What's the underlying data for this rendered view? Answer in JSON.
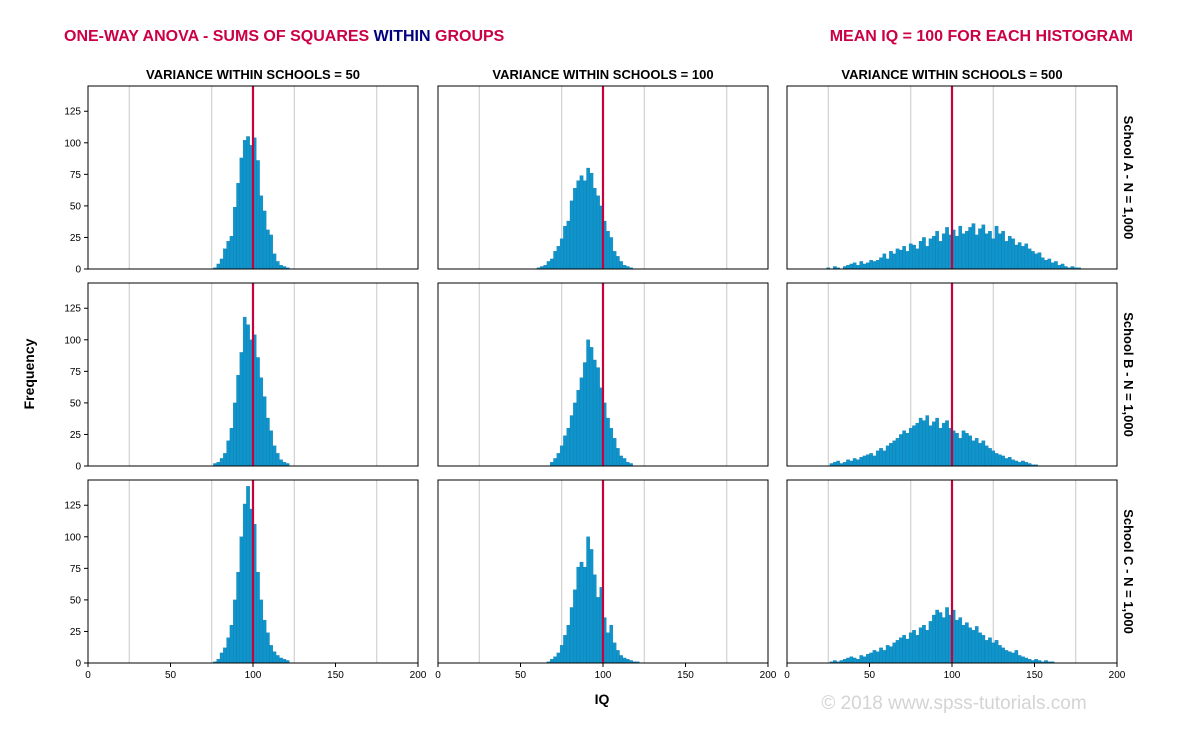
{
  "header": {
    "title_parts": [
      {
        "text": "ONE-WAY ANOVA - SUMS OF SQUARES ",
        "color": "#cc0044"
      },
      {
        "text": "WITHIN",
        "color": "#000080"
      },
      {
        "text": " GROUPS",
        "color": "#cc0044"
      }
    ],
    "right_title": "MEAN IQ = 100 FOR EACH HISTOGRAM"
  },
  "watermark": "© 2018 www.spss-tutorials.com",
  "colors": {
    "bar": "#0f94cc",
    "bar_edge": "#0b77a6",
    "mean_line": "#c8003c",
    "grid": "#c8c8c8",
    "frame": "#000000",
    "title_red": "#cc0044",
    "title_navy": "#000080",
    "watermark": "#d4d4d4"
  },
  "chart_data": {
    "type": "histogram-grid",
    "columns": [
      "VARIANCE WITHIN SCHOOLS = 50",
      "VARIANCE WITHIN SCHOOLS = 100",
      "VARIANCE WITHIN SCHOOLS = 500"
    ],
    "rows": [
      "School A - N = 1,000",
      "School B - N = 1,000",
      "School C - N = 1,000"
    ],
    "xlabel": "IQ",
    "ylabel": "Frequency",
    "xlim": [
      0,
      200
    ],
    "ylim": [
      0,
      145
    ],
    "xticks": [
      0,
      50,
      100,
      150,
      200
    ],
    "yticks": [
      0,
      25,
      50,
      75,
      100,
      125
    ],
    "vgrid": [
      25,
      75,
      125,
      175
    ],
    "mean": 100,
    "bin_width": 2,
    "panels": [
      [
        {
          "bin_start": 76,
          "counts": [
            1,
            4,
            8,
            16,
            22,
            26,
            49,
            68,
            88,
            102,
            105,
            98,
            104,
            86,
            58,
            46,
            31,
            27,
            12,
            6,
            3,
            2,
            1
          ]
        },
        {
          "bin_start": 60,
          "counts": [
            1,
            2,
            3,
            6,
            8,
            14,
            18,
            24,
            34,
            38,
            54,
            64,
            70,
            74,
            70,
            80,
            76,
            64,
            58,
            50,
            38,
            30,
            25,
            14,
            10,
            6,
            3,
            2,
            1
          ]
        },
        {
          "bin_start": 24,
          "counts": [
            1,
            0,
            2,
            1,
            0,
            2,
            3,
            4,
            5,
            3,
            6,
            4,
            5,
            7,
            6,
            7,
            9,
            12,
            8,
            14,
            12,
            16,
            15,
            18,
            14,
            20,
            19,
            16,
            22,
            25,
            18,
            24,
            26,
            30,
            22,
            28,
            33,
            27,
            31,
            26,
            34,
            28,
            30,
            33,
            36,
            27,
            32,
            35,
            28,
            30,
            24,
            34,
            28,
            30,
            22,
            26,
            24,
            19,
            21,
            18,
            20,
            16,
            14,
            12,
            13,
            9,
            7,
            8,
            5,
            6,
            3,
            4,
            2,
            1,
            2,
            1,
            1
          ]
        }
      ],
      [
        {
          "bin_start": 76,
          "counts": [
            2,
            3,
            6,
            10,
            20,
            30,
            50,
            72,
            90,
            118,
            112,
            100,
            104,
            86,
            70,
            55,
            38,
            28,
            16,
            10,
            5,
            3,
            2
          ]
        },
        {
          "bin_start": 68,
          "counts": [
            3,
            6,
            10,
            16,
            24,
            30,
            40,
            50,
            60,
            70,
            82,
            100,
            94,
            84,
            78,
            62,
            50,
            38,
            30,
            22,
            14,
            8,
            6,
            3,
            2
          ]
        },
        {
          "bin_start": 26,
          "counts": [
            2,
            3,
            4,
            2,
            3,
            5,
            4,
            6,
            5,
            7,
            8,
            9,
            10,
            8,
            12,
            14,
            12,
            16,
            18,
            20,
            22,
            25,
            28,
            26,
            30,
            32,
            34,
            38,
            36,
            40,
            32,
            35,
            38,
            30,
            34,
            36,
            30,
            28,
            26,
            22,
            28,
            26,
            24,
            20,
            22,
            18,
            20,
            16,
            14,
            12,
            10,
            9,
            8,
            6,
            7,
            5,
            4,
            3,
            4,
            3,
            2,
            1,
            1
          ]
        }
      ],
      [
        {
          "bin_start": 76,
          "counts": [
            1,
            3,
            8,
            12,
            20,
            30,
            50,
            72,
            100,
            126,
            140,
            122,
            110,
            72,
            50,
            34,
            24,
            14,
            9,
            6,
            4,
            3,
            2
          ]
        },
        {
          "bin_start": 66,
          "counts": [
            1,
            3,
            5,
            8,
            14,
            22,
            30,
            44,
            58,
            76,
            80,
            76,
            100,
            90,
            70,
            52,
            60,
            36,
            24,
            30,
            16,
            10,
            6,
            4,
            3,
            2,
            1,
            1
          ]
        },
        {
          "bin_start": 26,
          "counts": [
            1,
            2,
            1,
            2,
            3,
            4,
            5,
            4,
            3,
            6,
            5,
            7,
            8,
            10,
            9,
            12,
            10,
            14,
            13,
            16,
            18,
            20,
            22,
            19,
            24,
            26,
            22,
            28,
            30,
            26,
            33,
            38,
            42,
            40,
            36,
            44,
            38,
            42,
            34,
            36,
            30,
            32,
            28,
            26,
            29,
            24,
            22,
            18,
            20,
            16,
            18,
            14,
            12,
            10,
            9,
            8,
            10,
            6,
            5,
            4,
            3,
            2,
            3,
            2,
            1,
            2,
            1,
            1
          ]
        }
      ]
    ]
  }
}
